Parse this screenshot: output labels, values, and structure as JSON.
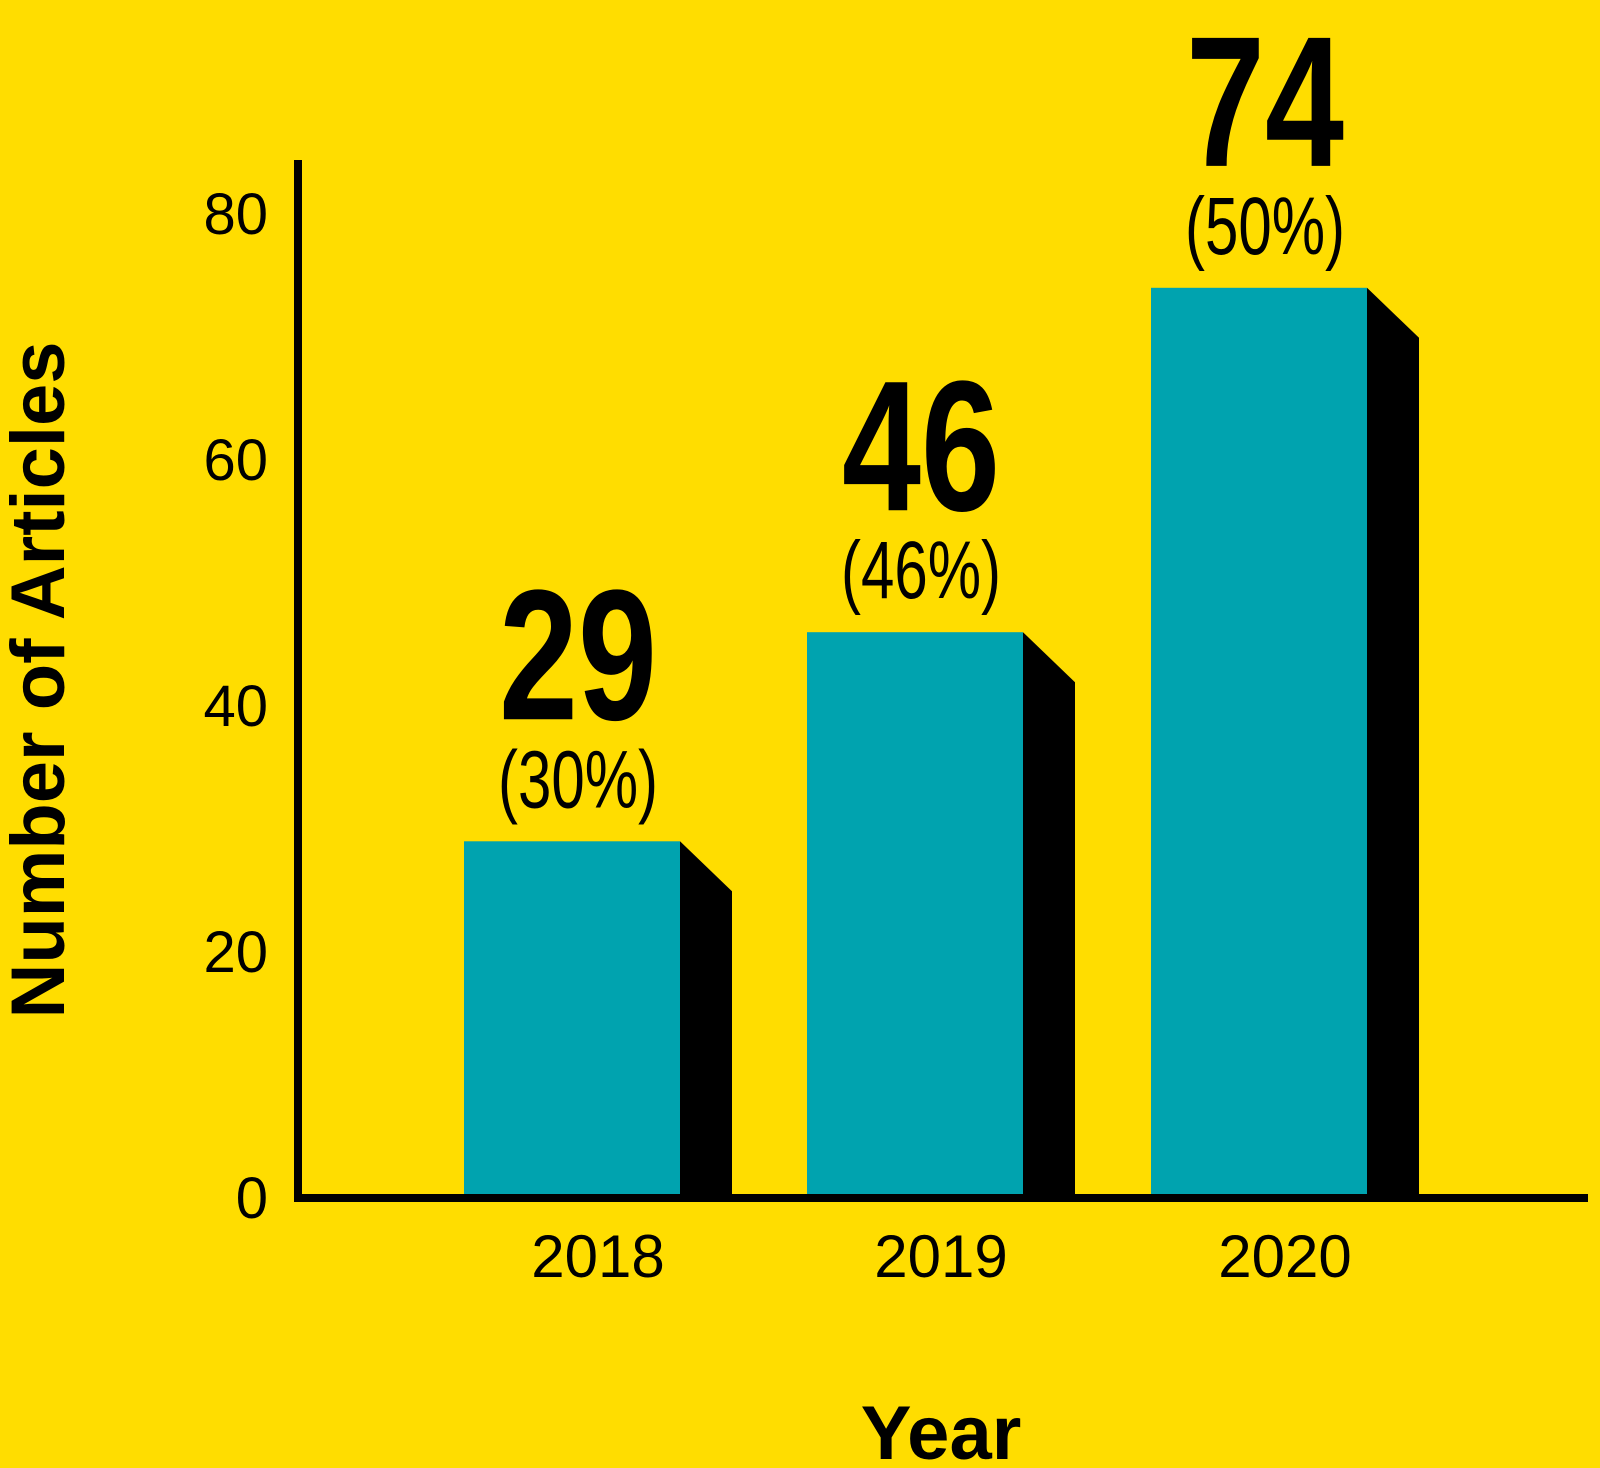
{
  "chart_data": {
    "type": "bar",
    "categories": [
      "2018",
      "2019",
      "2020"
    ],
    "values": [
      29,
      46,
      74
    ],
    "value_labels": [
      "29",
      "46",
      "74"
    ],
    "percent_labels": [
      "(30%)",
      "(46%)",
      "(50%)"
    ],
    "xlabel": "Year",
    "ylabel": "Number of Articles",
    "ylim": [
      0,
      80
    ],
    "yticks": [
      "0",
      "20",
      "40",
      "60",
      "80"
    ],
    "grid": false,
    "legend": "none",
    "colors": {
      "background": "#FFDD00",
      "bar_front": "#00A3AF",
      "bar_side": "#000000",
      "axis": "#000000"
    }
  }
}
